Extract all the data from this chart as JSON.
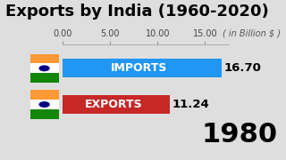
{
  "title": "Exports by India (1960-2020)",
  "subtitle": "( in Billion $ )",
  "year_label": "1980",
  "bars": [
    {
      "label": "IMPORTS",
      "value": 16.7,
      "color": "#2196F3"
    },
    {
      "label": "EXPORTS",
      "value": 11.24,
      "color": "#C62828"
    }
  ],
  "xlim": [
    0,
    17.5
  ],
  "xticks": [
    0.0,
    5.0,
    10.0,
    15.0
  ],
  "xtick_labels": [
    "0.00",
    "5.00",
    "10.00",
    "15.00"
  ],
  "bg_color": "#DEDEDE",
  "bar_height": 0.52,
  "value_label_fontsize": 9.5,
  "bar_label_fontsize": 9,
  "year_fontsize": 22,
  "title_fontsize": 13,
  "subtitle_fontsize": 7,
  "tick_fontsize": 7,
  "flag_orange": "#FF9933",
  "flag_white": "#FFFFFF",
  "flag_green": "#138808",
  "flag_chakra": "#000080"
}
